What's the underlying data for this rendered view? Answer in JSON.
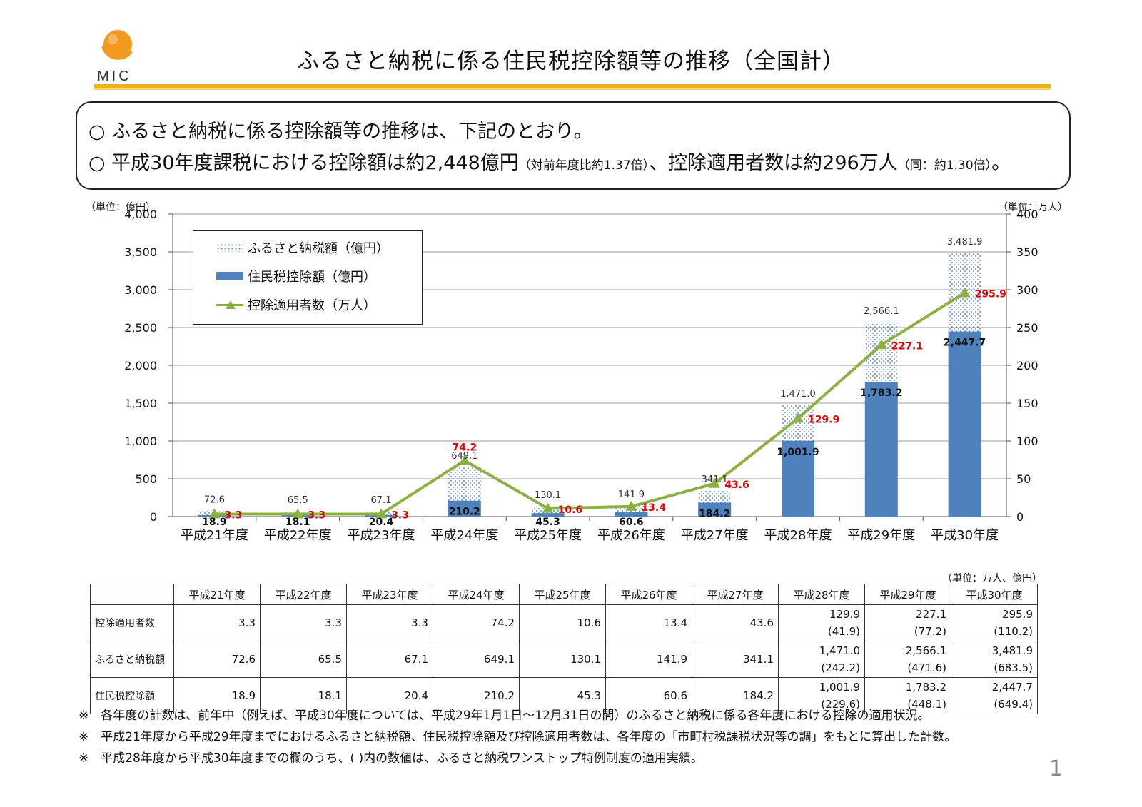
{
  "header": {
    "logo_text": "MIC",
    "title": "ふるさと納税に係る住民税控除額等の推移（全国計）"
  },
  "summary": {
    "line1": "○ ふるさと納税に係る控除額等の推移は、下記のとおり。",
    "line2_main": "○ 平成30年度課税における控除額は約2,448億円",
    "line2_note1": "（対前年度比約1.37倍）",
    "line2_mid": "、控除適用者数は約296万人",
    "line2_note2": "（同：約1.30倍）",
    "line2_end": "。"
  },
  "chart_data": {
    "type": "bar",
    "categories": [
      "平成21年度",
      "平成22年度",
      "平成23年度",
      "平成24年度",
      "平成25年度",
      "平成26年度",
      "平成27年度",
      "平成28年度",
      "平成29年度",
      "平成30年度"
    ],
    "series": [
      {
        "name": "ふるさと納税額（億円）",
        "axis": "left",
        "style": "dotted",
        "values": [
          72.6,
          65.5,
          67.1,
          649.1,
          130.1,
          141.9,
          341.1,
          1471.0,
          2566.1,
          3481.9
        ],
        "labels": [
          "72.6",
          "65.5",
          "67.1",
          "649.1",
          "130.1",
          "141.9",
          "341.1",
          "1,471.0",
          "2,566.1",
          "3,481.9"
        ]
      },
      {
        "name": "住民税控除額（億円）",
        "axis": "left",
        "style": "solid",
        "values": [
          18.9,
          18.1,
          20.4,
          210.2,
          45.3,
          60.6,
          184.2,
          1001.9,
          1783.2,
          2447.7
        ],
        "labels": [
          "18.9",
          "18.1",
          "20.4",
          "210.2",
          "45.3",
          "60.6",
          "184.2",
          "1,001.9",
          "1,783.2",
          "2,447.7"
        ]
      },
      {
        "name": "控除適用者数（万人）",
        "axis": "right",
        "style": "line",
        "values": [
          3.3,
          3.3,
          3.3,
          74.2,
          10.6,
          13.4,
          43.6,
          129.9,
          227.1,
          295.9
        ],
        "labels": [
          "3.3",
          "3.3",
          "3.3",
          "74.2",
          "10.6",
          "13.4",
          "43.6",
          "129.9",
          "227.1",
          "295.9"
        ]
      }
    ],
    "left_axis": {
      "unit_label": "（単位：億円）",
      "ylim": [
        0,
        4000
      ],
      "ticks": [
        "0",
        "500",
        "1,000",
        "1,500",
        "2,000",
        "2,500",
        "3,000",
        "3,500",
        "4,000"
      ]
    },
    "right_axis": {
      "unit_label": "（単位：万人）",
      "ylim": [
        0,
        400
      ],
      "ticks": [
        "0",
        "50",
        "100",
        "150",
        "200",
        "250",
        "300",
        "350",
        "400"
      ]
    },
    "legend": [
      "ふるさと納税額（億円）",
      "住民税控除額（億円）",
      "控除適用者数（万人）"
    ],
    "colors": {
      "bar": "#4f81bd",
      "dots": "#6b8fc4",
      "line": "#8db042",
      "line_label": "#e00000"
    }
  },
  "table": {
    "unit": "（単位：万人、億円）",
    "headers": [
      "平成21年度",
      "平成22年度",
      "平成23年度",
      "平成24年度",
      "平成25年度",
      "平成26年度",
      "平成27年度",
      "平成28年度",
      "平成29年度",
      "平成30年度"
    ],
    "rows": [
      {
        "label": "控除適用者数",
        "values": [
          "3.3",
          "3.3",
          "3.3",
          "74.2",
          "10.6",
          "13.4",
          "43.6",
          "129.9",
          "227.1",
          "295.9"
        ],
        "sub": [
          "",
          "",
          "",
          "",
          "",
          "",
          "",
          "(41.9)",
          "(77.2)",
          "(110.2)"
        ]
      },
      {
        "label": "ふるさと納税額",
        "values": [
          "72.6",
          "65.5",
          "67.1",
          "649.1",
          "130.1",
          "141.9",
          "341.1",
          "1,471.0",
          "2,566.1",
          "3,481.9"
        ],
        "sub": [
          "",
          "",
          "",
          "",
          "",
          "",
          "",
          "(242.2)",
          "(471.6)",
          "(683.5)"
        ]
      },
      {
        "label": "住民税控除額",
        "values": [
          "18.9",
          "18.1",
          "20.4",
          "210.2",
          "45.3",
          "60.6",
          "184.2",
          "1,001.9",
          "1,783.2",
          "2,447.7"
        ],
        "sub": [
          "",
          "",
          "",
          "",
          "",
          "",
          "",
          "(229.6)",
          "(448.1)",
          "(649.4)"
        ]
      }
    ]
  },
  "footnotes": [
    "※　各年度の計数は、前年中（例えば、平成30年度については、平成29年1月1日～12月31日の間）のふるさと納税に係る各年度における控除の適用状況。",
    "※　平成21年度から平成29年度までにおけるふるさと納税額、住民税控除額及び控除適用者数は、各年度の「市町村税課税状況等の調」をもとに算出した計数。",
    "※　平成28年度から平成30年度までの欄のうち、( )内の数値は、ふるさと納税ワンストップ特例制度の適用実績。"
  ],
  "page_number": "1"
}
